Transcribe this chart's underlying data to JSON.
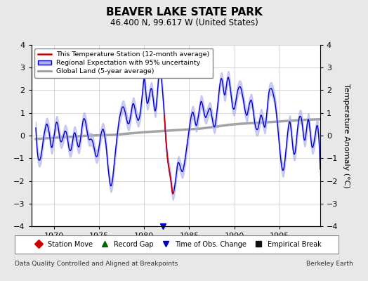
{
  "title": "BEAVER LAKE STATE PARK",
  "subtitle": "46.400 N, 99.617 W (United States)",
  "ylabel": "Temperature Anomaly (°C)",
  "xlabel_note": "Data Quality Controlled and Aligned at Breakpoints",
  "credit": "Berkeley Earth",
  "ylim": [
    -4,
    4
  ],
  "xlim": [
    1967.5,
    1999.5
  ],
  "xticks": [
    1970,
    1975,
    1980,
    1985,
    1990,
    1995
  ],
  "yticks": [
    -4,
    -3,
    -2,
    -1,
    0,
    1,
    2,
    3,
    4
  ],
  "bg_color": "#e8e8e8",
  "plot_bg_color": "#ffffff",
  "grid_color": "#c8c8c8",
  "station_color": "#cc0000",
  "regional_color": "#0000cc",
  "regional_fill": "#b0b0ee",
  "global_color": "#999999",
  "legend_items": [
    "This Temperature Station (12-month average)",
    "Regional Expectation with 95% uncertainty",
    "Global Land (5-year average)"
  ],
  "bottom_legend": [
    {
      "label": "Station Move",
      "color": "#cc0000",
      "marker": "D"
    },
    {
      "label": "Record Gap",
      "color": "#006600",
      "marker": "^"
    },
    {
      "label": "Time of Obs. Change",
      "color": "#0000cc",
      "marker": "v"
    },
    {
      "label": "Empirical Break",
      "color": "#111111",
      "marker": "s"
    }
  ],
  "regional_keypoints": [
    [
      1968.0,
      0.3
    ],
    [
      1968.8,
      -0.3
    ],
    [
      1969.3,
      0.5
    ],
    [
      1969.8,
      -0.5
    ],
    [
      1970.3,
      0.6
    ],
    [
      1970.8,
      -0.3
    ],
    [
      1971.3,
      0.2
    ],
    [
      1971.8,
      -0.7
    ],
    [
      1972.3,
      0.1
    ],
    [
      1972.8,
      -0.5
    ],
    [
      1973.3,
      0.8
    ],
    [
      1973.8,
      0.0
    ],
    [
      1974.3,
      -0.3
    ],
    [
      1974.8,
      -0.9
    ],
    [
      1975.3,
      0.2
    ],
    [
      1975.8,
      -0.5
    ],
    [
      1976.3,
      -2.2
    ],
    [
      1976.8,
      -0.8
    ],
    [
      1977.3,
      0.8
    ],
    [
      1977.8,
      1.2
    ],
    [
      1978.3,
      0.5
    ],
    [
      1978.8,
      1.4
    ],
    [
      1979.3,
      0.7
    ],
    [
      1979.8,
      1.8
    ],
    [
      1980.0,
      2.5
    ],
    [
      1980.3,
      1.5
    ],
    [
      1980.8,
      2.1
    ],
    [
      1981.3,
      1.2
    ],
    [
      1981.6,
      2.6
    ],
    [
      1982.0,
      2.2
    ],
    [
      1982.3,
      0.5
    ],
    [
      1982.6,
      -1.0
    ],
    [
      1982.9,
      -1.8
    ],
    [
      1983.2,
      -2.5
    ],
    [
      1983.5,
      -1.9
    ],
    [
      1983.8,
      -1.2
    ],
    [
      1984.2,
      -1.6
    ],
    [
      1984.6,
      -0.8
    ],
    [
      1985.0,
      0.3
    ],
    [
      1985.4,
      1.0
    ],
    [
      1985.8,
      0.5
    ],
    [
      1986.3,
      1.5
    ],
    [
      1986.8,
      0.8
    ],
    [
      1987.3,
      1.2
    ],
    [
      1987.8,
      0.4
    ],
    [
      1988.3,
      2.0
    ],
    [
      1988.6,
      2.5
    ],
    [
      1988.9,
      1.8
    ],
    [
      1989.3,
      2.6
    ],
    [
      1989.6,
      1.9
    ],
    [
      1989.9,
      1.2
    ],
    [
      1990.3,
      1.8
    ],
    [
      1990.7,
      2.1
    ],
    [
      1991.0,
      1.5
    ],
    [
      1991.4,
      0.9
    ],
    [
      1991.8,
      1.6
    ],
    [
      1992.2,
      0.7
    ],
    [
      1992.6,
      0.3
    ],
    [
      1993.0,
      0.9
    ],
    [
      1993.4,
      0.4
    ],
    [
      1993.8,
      1.8
    ],
    [
      1994.2,
      2.0
    ],
    [
      1994.6,
      1.2
    ],
    [
      1995.0,
      -0.5
    ],
    [
      1995.4,
      -1.5
    ],
    [
      1995.8,
      -0.3
    ],
    [
      1996.2,
      0.5
    ],
    [
      1996.6,
      -0.8
    ],
    [
      1997.0,
      0.3
    ],
    [
      1997.4,
      0.8
    ],
    [
      1997.8,
      -0.2
    ],
    [
      1998.2,
      0.7
    ],
    [
      1998.6,
      -0.5
    ],
    [
      1999.0,
      0.2
    ],
    [
      1999.5,
      -1.5
    ]
  ],
  "global_keypoints": [
    [
      1968.0,
      -0.15
    ],
    [
      1970.0,
      -0.1
    ],
    [
      1972.0,
      -0.05
    ],
    [
      1974.0,
      0.0
    ],
    [
      1976.0,
      0.02
    ],
    [
      1978.0,
      0.08
    ],
    [
      1980.0,
      0.15
    ],
    [
      1982.0,
      0.2
    ],
    [
      1984.0,
      0.25
    ],
    [
      1986.0,
      0.3
    ],
    [
      1988.0,
      0.4
    ],
    [
      1990.0,
      0.5
    ],
    [
      1992.0,
      0.55
    ],
    [
      1994.0,
      0.6
    ],
    [
      1996.0,
      0.65
    ],
    [
      1998.0,
      0.7
    ],
    [
      1999.5,
      0.72
    ]
  ],
  "station_segment": {
    "x_start": 1982.2,
    "x_end": 1983.3
  },
  "obs_change_year": 1982.05,
  "uncertainty_band": 0.28
}
